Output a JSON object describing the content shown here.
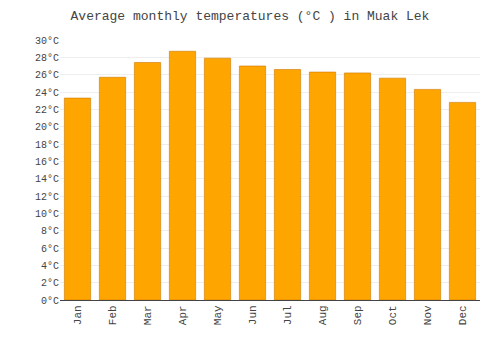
{
  "chart_data": {
    "type": "bar",
    "title": "Average monthly temperatures (°C ) in Muak Lek",
    "categories": [
      "Jan",
      "Feb",
      "Mar",
      "Apr",
      "May",
      "Jun",
      "Jul",
      "Aug",
      "Sep",
      "Oct",
      "Nov",
      "Dec"
    ],
    "values": [
      23.3,
      25.7,
      27.4,
      28.7,
      27.9,
      27.0,
      26.6,
      26.3,
      26.2,
      25.6,
      24.3,
      22.8
    ],
    "color": "#FFA500",
    "ylim": [
      0,
      30
    ],
    "yticks": [
      {
        "value": 0,
        "label": "0°C"
      },
      {
        "value": 2,
        "label": "2°C"
      },
      {
        "value": 4,
        "label": "4°C"
      },
      {
        "value": 6,
        "label": "6°C"
      },
      {
        "value": 8,
        "label": "8°C"
      },
      {
        "value": 10,
        "label": "10°C"
      },
      {
        "value": 12,
        "label": "12°C"
      },
      {
        "value": 14,
        "label": "14°C"
      },
      {
        "value": 16,
        "label": "16°C"
      },
      {
        "value": 18,
        "label": "18°C"
      },
      {
        "value": 20,
        "label": "20°C"
      },
      {
        "value": 22,
        "label": "22°C"
      },
      {
        "value": 24,
        "label": "24°C"
      },
      {
        "value": 26,
        "label": "26°C"
      },
      {
        "value": 28,
        "label": "28°C"
      },
      {
        "value": 30,
        "label": "30°C"
      }
    ],
    "grid": true
  }
}
